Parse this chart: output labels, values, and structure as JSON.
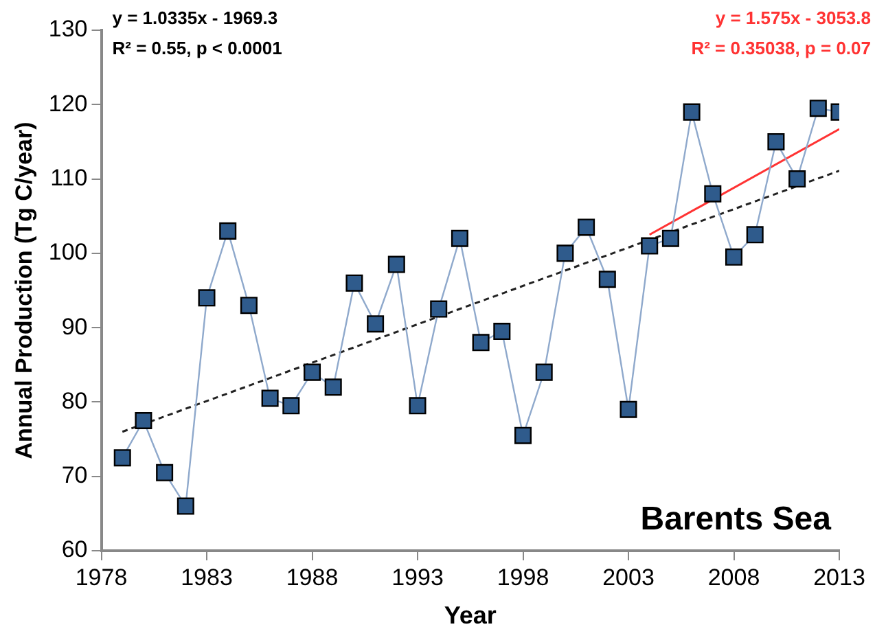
{
  "chart_data": {
    "type": "line",
    "xlabel": "Year",
    "ylabel": "Annual Production (Tg C/year)",
    "xlim": [
      1978,
      2013
    ],
    "xticks": [
      1978,
      1983,
      1988,
      1993,
      1998,
      2003,
      2008,
      2013
    ],
    "ylim": [
      60,
      130
    ],
    "yticks": [
      60,
      70,
      80,
      90,
      100,
      110,
      120,
      130
    ],
    "grid": false,
    "legend": false,
    "series": [
      {
        "color": "#2f5b8c",
        "marker": "square",
        "x": [
          1979,
          1980,
          1981,
          1982,
          1983,
          1984,
          1985,
          1986,
          1987,
          1988,
          1989,
          1990,
          1991,
          1992,
          1993,
          1994,
          1995,
          1996,
          1997,
          1998,
          1999,
          2000,
          2001,
          2002,
          2003,
          2004,
          2005,
          2006,
          2007,
          2008,
          2009,
          2010,
          2011,
          2012,
          2013
        ],
        "values": [
          72.5,
          77.5,
          70.5,
          66,
          94,
          103,
          93,
          80.5,
          79.5,
          84,
          82,
          96,
          90.5,
          98.5,
          79.5,
          92.5,
          102,
          88,
          89.5,
          75.5,
          84,
          100,
          103.5,
          96.5,
          79,
          101,
          102,
          119,
          108,
          99.5,
          102.5,
          115,
          110,
          119.5,
          119
        ]
      },
      {
        "color": "#222222",
        "marker": "none",
        "line_style": "dashed",
        "x": [
          1979,
          2013
        ],
        "values": [
          76.0,
          111.1
        ]
      },
      {
        "color": "#ff3333",
        "marker": "none",
        "x": [
          2004,
          2013
        ],
        "values": [
          102.5,
          116.7
        ]
      }
    ],
    "annotations": [
      "y = 1.0335x - 1969.3",
      "R² = 0.55, p < 0.0001",
      "y = 1.575x - 3053.8",
      "R² = 0.35038, p = 0.07",
      "Barents Sea"
    ]
  }
}
